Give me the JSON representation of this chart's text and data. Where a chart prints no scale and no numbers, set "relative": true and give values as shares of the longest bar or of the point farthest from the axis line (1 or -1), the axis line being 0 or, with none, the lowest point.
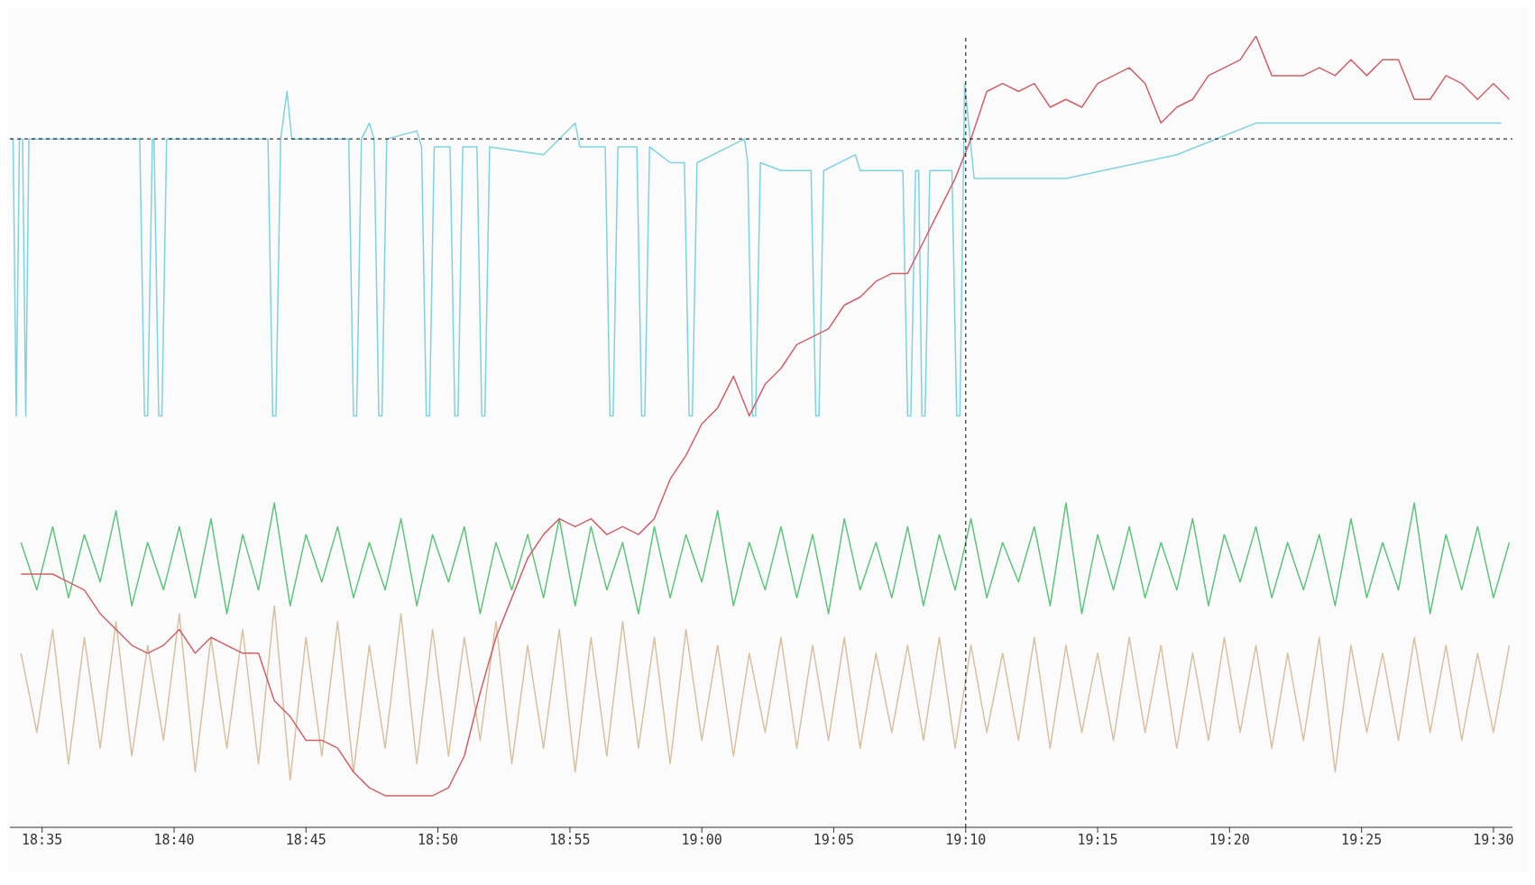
{
  "chart_data": {
    "type": "line",
    "relative": true,
    "x": [
      18.57,
      18.58,
      18.59,
      18.6,
      18.61,
      18.62,
      18.63,
      18.64,
      18.65,
      18.66,
      18.67,
      18.68,
      18.69,
      18.7,
      18.71,
      18.72,
      18.73,
      18.74,
      18.75,
      18.76,
      18.77,
      18.78,
      18.79,
      18.8,
      18.81,
      18.82,
      18.83,
      18.84,
      18.85,
      18.86,
      18.87,
      18.88,
      18.89,
      18.9,
      18.91,
      18.92,
      18.93,
      18.94,
      18.95,
      18.96,
      18.97,
      18.98,
      18.99,
      19.0,
      19.01,
      19.02,
      19.03,
      19.04,
      19.05,
      19.06,
      19.07,
      19.08,
      19.09,
      19.1,
      19.11,
      19.12,
      19.13,
      19.14,
      19.15,
      19.16,
      19.17,
      19.18,
      19.19,
      19.2,
      19.21,
      19.22,
      19.23,
      19.24,
      19.25,
      19.26,
      19.27,
      19.28,
      19.29,
      19.3,
      19.31,
      19.32,
      19.33,
      19.34,
      19.35,
      19.36,
      19.37,
      19.38,
      19.39,
      19.4,
      19.41,
      19.42,
      19.43,
      19.44,
      19.45,
      19.46,
      19.47,
      19.48,
      19.49,
      19.5,
      19.51
    ],
    "xlim": [
      18.563,
      19.512
    ],
    "xticks": [
      {
        "value": 18.5833,
        "label": "18:35"
      },
      {
        "value": 18.6667,
        "label": "18:40"
      },
      {
        "value": 18.75,
        "label": "18:45"
      },
      {
        "value": 18.8333,
        "label": "18:50"
      },
      {
        "value": 18.9167,
        "label": "18:55"
      },
      {
        "value": 19,
        "label": "19:00"
      },
      {
        "value": 19.0833,
        "label": "19:05"
      },
      {
        "value": 19.1667,
        "label": "19:10"
      },
      {
        "value": 19.25,
        "label": "19:15"
      },
      {
        "value": 19.3333,
        "label": "19:20"
      },
      {
        "value": 19.4167,
        "label": "19:25"
      },
      {
        "value": 19.5,
        "label": "19:30"
      }
    ],
    "series": [
      {
        "color": "#7fd3e0",
        "x": [
          18.564,
          18.565,
          18.567,
          18.569,
          18.571,
          18.573,
          18.575,
          18.6,
          18.645,
          18.648,
          18.65,
          18.653,
          18.654,
          18.657,
          18.659,
          18.662,
          18.7,
          18.726,
          18.729,
          18.731,
          18.734,
          18.738,
          18.741,
          18.777,
          18.78,
          18.782,
          18.785,
          18.79,
          18.793,
          18.796,
          18.798,
          18.801,
          18.82,
          18.823,
          18.826,
          18.828,
          18.831,
          18.841,
          18.844,
          18.846,
          18.849,
          18.858,
          18.861,
          18.863,
          18.866,
          18.9,
          18.92,
          18.923,
          18.939,
          18.942,
          18.944,
          18.947,
          18.959,
          18.962,
          18.964,
          18.967,
          18.98,
          18.989,
          18.992,
          18.994,
          18.997,
          19.027,
          19.029,
          19.032,
          19.034,
          19.037,
          19.05,
          19.069,
          19.072,
          19.074,
          19.077,
          19.097,
          19.1,
          19.127,
          19.13,
          19.132,
          19.135,
          19.137,
          19.139,
          19.141,
          19.144,
          19.158,
          19.161,
          19.163,
          19.166,
          19.172,
          19.23,
          19.3,
          19.35,
          19.505
        ],
        "values": [
          0.87,
          0.87,
          0.52,
          0.87,
          0.87,
          0.52,
          0.87,
          0.87,
          0.87,
          0.52,
          0.52,
          0.87,
          0.87,
          0.52,
          0.52,
          0.87,
          0.87,
          0.87,
          0.52,
          0.52,
          0.87,
          0.93,
          0.87,
          0.87,
          0.52,
          0.52,
          0.87,
          0.89,
          0.87,
          0.52,
          0.52,
          0.87,
          0.88,
          0.86,
          0.52,
          0.52,
          0.86,
          0.86,
          0.52,
          0.52,
          0.86,
          0.86,
          0.52,
          0.52,
          0.86,
          0.85,
          0.89,
          0.86,
          0.86,
          0.52,
          0.52,
          0.86,
          0.86,
          0.52,
          0.52,
          0.86,
          0.84,
          0.84,
          0.52,
          0.52,
          0.84,
          0.87,
          0.84,
          0.52,
          0.52,
          0.84,
          0.83,
          0.83,
          0.52,
          0.52,
          0.83,
          0.85,
          0.83,
          0.83,
          0.52,
          0.52,
          0.83,
          0.83,
          0.52,
          0.52,
          0.83,
          0.83,
          0.52,
          0.52,
          0.94,
          0.82,
          0.82,
          0.85,
          0.89,
          0.89
        ]
      },
      {
        "color": "#d8c0a0",
        "values": [
          0.22,
          0.12,
          0.25,
          0.08,
          0.24,
          0.1,
          0.26,
          0.09,
          0.23,
          0.11,
          0.27,
          0.07,
          0.24,
          0.1,
          0.25,
          0.08,
          0.28,
          0.06,
          0.24,
          0.09,
          0.26,
          0.07,
          0.23,
          0.1,
          0.27,
          0.08,
          0.25,
          0.09,
          0.24,
          0.11,
          0.26,
          0.08,
          0.23,
          0.1,
          0.25,
          0.07,
          0.24,
          0.09,
          0.26,
          0.1,
          0.24,
          0.08,
          0.25,
          0.11,
          0.23,
          0.09,
          0.22,
          0.12,
          0.24,
          0.1,
          0.23,
          0.11,
          0.24,
          0.1,
          0.22,
          0.12,
          0.23,
          0.11,
          0.24,
          0.1,
          0.23,
          0.12,
          0.22,
          0.11,
          0.24,
          0.1,
          0.23,
          0.12,
          0.22,
          0.11,
          0.24,
          0.12,
          0.23,
          0.1,
          0.22,
          0.11,
          0.24,
          0.12,
          0.23,
          0.1,
          0.22,
          0.11,
          0.24,
          0.07,
          0.23,
          0.12,
          0.22,
          0.11,
          0.24,
          0.12,
          0.23,
          0.11,
          0.22,
          0.12,
          0.23
        ]
      },
      {
        "color": "#5cc47a",
        "values": [
          0.36,
          0.3,
          0.38,
          0.29,
          0.37,
          0.31,
          0.4,
          0.28,
          0.36,
          0.3,
          0.38,
          0.29,
          0.39,
          0.27,
          0.37,
          0.3,
          0.41,
          0.28,
          0.37,
          0.31,
          0.38,
          0.29,
          0.36,
          0.3,
          0.39,
          0.28,
          0.37,
          0.31,
          0.38,
          0.27,
          0.36,
          0.3,
          0.37,
          0.29,
          0.39,
          0.28,
          0.38,
          0.3,
          0.36,
          0.27,
          0.38,
          0.29,
          0.37,
          0.31,
          0.4,
          0.28,
          0.36,
          0.3,
          0.38,
          0.29,
          0.37,
          0.27,
          0.39,
          0.3,
          0.36,
          0.29,
          0.38,
          0.28,
          0.37,
          0.3,
          0.39,
          0.29,
          0.36,
          0.31,
          0.38,
          0.28,
          0.41,
          0.27,
          0.37,
          0.3,
          0.38,
          0.29,
          0.36,
          0.3,
          0.39,
          0.28,
          0.37,
          0.31,
          0.38,
          0.29,
          0.36,
          0.3,
          0.37,
          0.28,
          0.39,
          0.29,
          0.36,
          0.3,
          0.41,
          0.27,
          0.37,
          0.3,
          0.38,
          0.29,
          0.36
        ]
      },
      {
        "color": "#d0606a",
        "values": [
          0.32,
          0.32,
          0.32,
          0.31,
          0.3,
          0.27,
          0.25,
          0.23,
          0.22,
          0.23,
          0.25,
          0.22,
          0.24,
          0.23,
          0.22,
          0.22,
          0.16,
          0.14,
          0.11,
          0.11,
          0.1,
          0.07,
          0.05,
          0.04,
          0.04,
          0.04,
          0.04,
          0.05,
          0.09,
          0.17,
          0.24,
          0.29,
          0.34,
          0.37,
          0.39,
          0.38,
          0.39,
          0.37,
          0.38,
          0.37,
          0.39,
          0.44,
          0.47,
          0.51,
          0.53,
          0.57,
          0.52,
          0.56,
          0.58,
          0.61,
          0.62,
          0.63,
          0.66,
          0.67,
          0.69,
          0.7,
          0.7,
          0.74,
          0.78,
          0.82,
          0.87,
          0.93,
          0.94,
          0.93,
          0.94,
          0.91,
          0.92,
          0.91,
          0.94,
          0.95,
          0.96,
          0.94,
          0.89,
          0.91,
          0.92,
          0.95,
          0.96,
          0.97,
          1,
          0.95,
          0.95,
          0.95,
          0.96,
          0.95,
          0.97,
          0.95,
          0.97,
          0.97,
          0.92,
          0.92,
          0.95,
          0.94,
          0.92,
          0.94,
          0.92
        ]
      }
    ],
    "ref_lines": [
      {
        "axis": "x",
        "value": 19.1667,
        "color": "#000000",
        "line_style": "dashed"
      },
      {
        "axis": "y",
        "value": 0.87,
        "color": "#000000",
        "line_style": "dashed"
      }
    ]
  }
}
